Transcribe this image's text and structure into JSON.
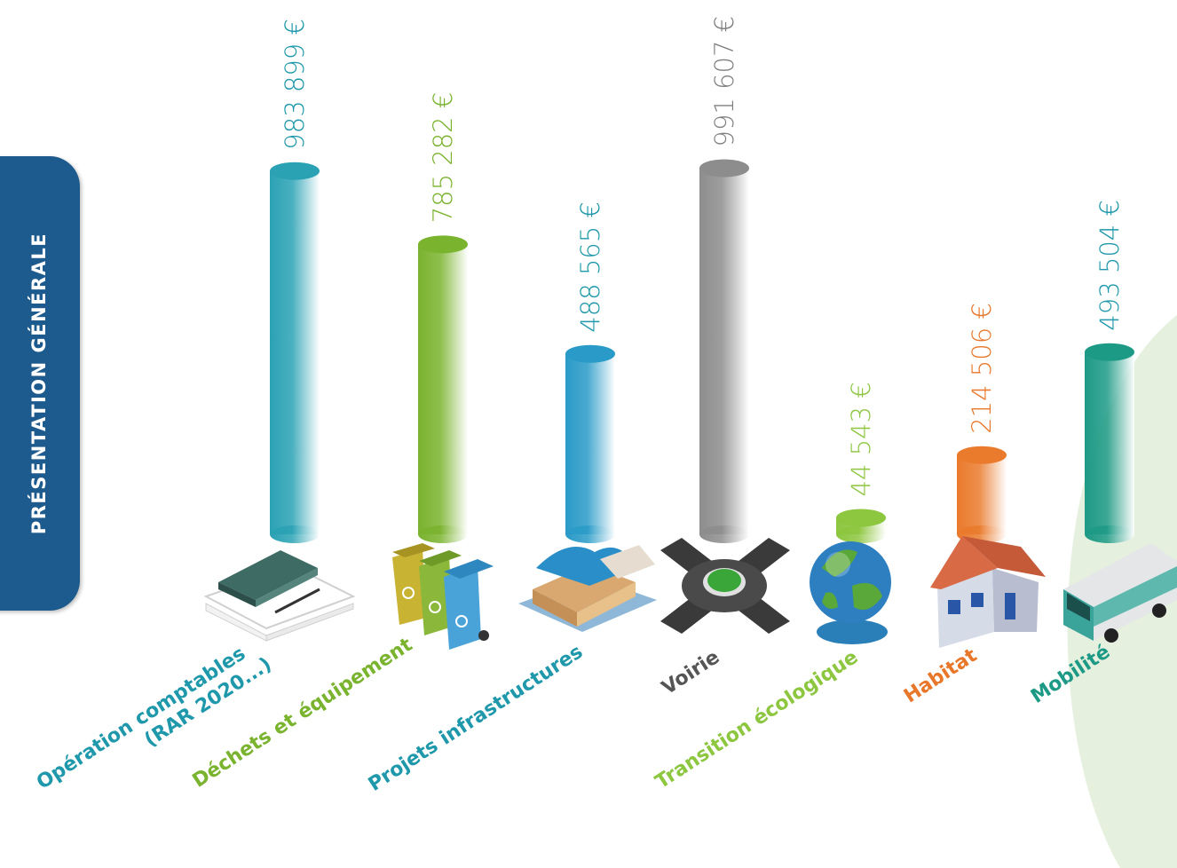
{
  "sidebar": {
    "label": "PRÉSENTATION GÉNÉRALE"
  },
  "chart_data": {
    "type": "bar",
    "unit": "€",
    "categories": [
      "Opération comptables (RAR 2020...)",
      "Déchets et équipement",
      "Projets infrastructures",
      "Voirie",
      "Transition écologique",
      "Habitat",
      "Mobilité"
    ],
    "category_lines": [
      [
        "Opération comptables",
        "(RAR 2020...)"
      ],
      [
        "Déchets et équipement"
      ],
      [
        "Projets infrastructures"
      ],
      [
        "Voirie"
      ],
      [
        "Transition écologique"
      ],
      [
        "Habitat"
      ],
      [
        "Mobilité"
      ]
    ],
    "values": [
      983899,
      785282,
      488565,
      991607,
      44543,
      214506,
      493504
    ],
    "value_labels": [
      "983 899 €",
      "785 282 €",
      "488 565 €",
      "991 607 €",
      "44 543 €",
      "214 506 €",
      "493 504 €"
    ],
    "icons": [
      "ledger-book-icon",
      "recycling-bins-icon",
      "building-icon",
      "roundabout-icon",
      "globe-icon",
      "house-icon",
      "bus-icon"
    ],
    "colors": [
      "#2aa2b4",
      "#7ab32e",
      "#2a9bc8",
      "#8d8d8d",
      "#8dc63f",
      "#ea7a2c",
      "#1d9a86"
    ],
    "value_colors": [
      "#1e98aa",
      "#7ab32e",
      "#1e98aa",
      "#7f7f7f",
      "#8dc63f",
      "#e8772a",
      "#1e98aa"
    ],
    "label_colors": [
      "#1e98aa",
      "#7ab32e",
      "#1e98aa",
      "#555555",
      "#8dc63f",
      "#e8772a",
      "#1d9a86"
    ],
    "ylim": [
      0,
      1000000
    ],
    "grid": false,
    "legend": "none"
  }
}
